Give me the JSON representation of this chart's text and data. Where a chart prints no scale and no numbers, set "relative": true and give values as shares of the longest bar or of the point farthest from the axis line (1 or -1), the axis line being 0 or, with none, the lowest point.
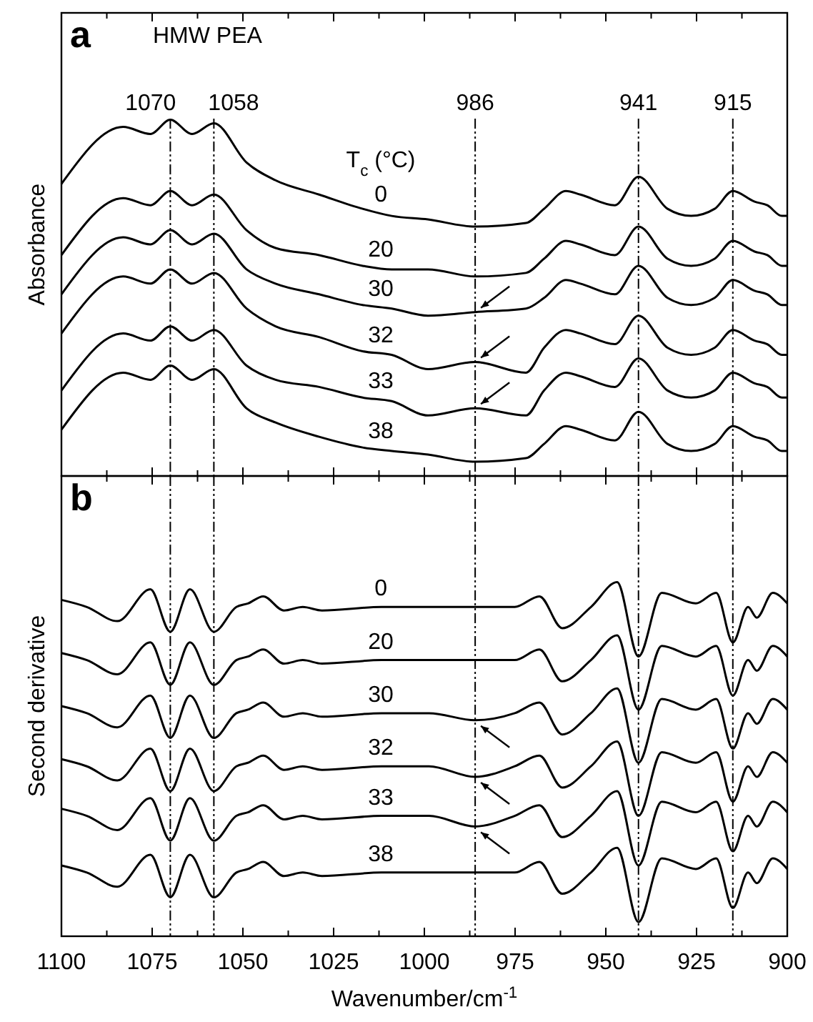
{
  "chart_data": [
    {
      "type": "line",
      "title": "a",
      "subtitle": "HMW PEA",
      "ylabel": "Absorbance",
      "legend_title": "T$_{c}$ (°C)",
      "relative": true,
      "tick_labels": false,
      "line_style": "solid",
      "xlim": [
        1100,
        900
      ],
      "xticks": [
        {
          "value": 1100,
          "label": null
        },
        {
          "value": 1087.5,
          "label": null
        },
        {
          "value": 1075,
          "label": null
        },
        {
          "value": 1062.5,
          "label": null
        },
        {
          "value": 1050,
          "label": null
        },
        {
          "value": 1037.5,
          "label": null
        },
        {
          "value": 1025,
          "label": null
        },
        {
          "value": 1012.5,
          "label": null
        },
        {
          "value": 1000,
          "label": null
        },
        {
          "value": 987.5,
          "label": null
        },
        {
          "value": 975,
          "label": null
        },
        {
          "value": 962.5,
          "label": null
        },
        {
          "value": 950,
          "label": null
        },
        {
          "value": 937.5,
          "label": null
        },
        {
          "value": 925,
          "label": null
        },
        {
          "value": 912.5,
          "label": null
        },
        {
          "value": 900,
          "label": null
        }
      ],
      "x": [
        1100,
        1083,
        1075.5,
        1070,
        1064,
        1058,
        1049,
        1041,
        1029,
        1017,
        1009,
        999,
        986,
        972,
        967,
        961,
        957,
        947.5,
        941,
        933,
        926.5,
        920,
        915,
        909,
        905.5,
        901.5,
        900
      ],
      "ref_lines": [
        {
          "axis": "x",
          "value": 1070,
          "label": "1070",
          "line_style": "dashed"
        },
        {
          "axis": "x",
          "value": 1058,
          "label": "1058",
          "line_style": "dashed"
        },
        {
          "axis": "x",
          "value": 986,
          "label": "986",
          "line_style": "dashed"
        },
        {
          "axis": "x",
          "value": 941,
          "label": "941",
          "line_style": "dashed"
        },
        {
          "axis": "x",
          "value": 915,
          "label": "915",
          "line_style": "dashed"
        }
      ],
      "series": [
        {
          "name": "0",
          "color": "#000000",
          "values": [
            0.82,
            0.98,
            0.96,
            1,
            0.96,
            0.99,
            0.88,
            0.83,
            0.79,
            0.75,
            0.73,
            0.72,
            0.7,
            0.71,
            0.75,
            0.8,
            0.79,
            0.76,
            0.84,
            0.75,
            0.73,
            0.75,
            0.8,
            0.77,
            0.76,
            0.73,
            0.73
          ]
        },
        {
          "name": "20",
          "color": "#000000",
          "values": [
            0.62,
            0.78,
            0.76,
            0.8,
            0.76,
            0.79,
            0.69,
            0.64,
            0.62,
            0.59,
            0.58,
            0.58,
            0.56,
            0.57,
            0.61,
            0.66,
            0.65,
            0.62,
            0.7,
            0.61,
            0.59,
            0.61,
            0.66,
            0.63,
            0.62,
            0.59,
            0.59
          ]
        },
        {
          "name": "30",
          "color": "#000000",
          "values": [
            0.51,
            0.67,
            0.65,
            0.69,
            0.65,
            0.68,
            0.58,
            0.54,
            0.51,
            0.48,
            0.47,
            0.45,
            0.46,
            0.47,
            0.5,
            0.55,
            0.54,
            0.51,
            0.59,
            0.5,
            0.48,
            0.5,
            0.55,
            0.52,
            0.51,
            0.48,
            0.48
          ]
        },
        {
          "name": "32",
          "color": "#000000",
          "values": [
            0.4,
            0.56,
            0.54,
            0.58,
            0.54,
            0.57,
            0.47,
            0.42,
            0.39,
            0.35,
            0.34,
            0.3,
            0.32,
            0.29,
            0.36,
            0.41,
            0.4,
            0.37,
            0.45,
            0.36,
            0.34,
            0.36,
            0.41,
            0.38,
            0.37,
            0.34,
            0.34
          ]
        },
        {
          "name": "33",
          "color": "#000000",
          "values": [
            0.24,
            0.4,
            0.38,
            0.42,
            0.38,
            0.41,
            0.31,
            0.27,
            0.25,
            0.22,
            0.21,
            0.17,
            0.19,
            0.17,
            0.24,
            0.29,
            0.28,
            0.25,
            0.33,
            0.24,
            0.22,
            0.24,
            0.29,
            0.26,
            0.25,
            0.22,
            0.22
          ]
        },
        {
          "name": "38",
          "color": "#000000",
          "values": [
            0.13,
            0.29,
            0.27,
            0.31,
            0.27,
            0.3,
            0.19,
            0.15,
            0.11,
            0.08,
            0.07,
            0.06,
            0.04,
            0.05,
            0.09,
            0.14,
            0.13,
            0.1,
            0.18,
            0.09,
            0.07,
            0.09,
            0.14,
            0.11,
            0.1,
            0.07,
            0.07
          ]
        }
      ]
    },
    {
      "type": "line",
      "title": "b",
      "ylabel": "Second derivative",
      "xlabel": "Wavenumber/cm$^{-1}$",
      "relative": true,
      "tick_labels": "x",
      "line_style": "solid",
      "xlim": [
        1100,
        900
      ],
      "xticks": [
        1100,
        {
          "value": 1087.5,
          "label": null
        },
        1075,
        {
          "value": 1062.5,
          "label": null
        },
        1050,
        {
          "value": 1037.5,
          "label": null
        },
        1025,
        {
          "value": 1012.5,
          "label": null
        },
        1000,
        {
          "value": 987.5,
          "label": null
        },
        975,
        {
          "value": 962.5,
          "label": null
        },
        950,
        {
          "value": 937.5,
          "label": null
        },
        925,
        {
          "value": 912.5,
          "label": null
        },
        900
      ],
      "x": [
        1100,
        1093,
        1084.6,
        1075.5,
        1070,
        1064.6,
        1058,
        1051.8,
        1048.6,
        1044.4,
        1038.7,
        1033.5,
        1028.2,
        1011.8,
        998.7,
        986,
        975.1,
        968.3,
        962,
        954.1,
        946.9,
        941,
        934.6,
        925.2,
        919.6,
        915,
        910.8,
        908.4,
        904,
        900
      ],
      "ref_lines": [
        {
          "axis": "x",
          "value": 1070,
          "line_style": "dashed"
        },
        {
          "axis": "x",
          "value": 1058,
          "line_style": "dashed"
        },
        {
          "axis": "x",
          "value": 986,
          "line_style": "dashed"
        },
        {
          "axis": "x",
          "value": 941,
          "line_style": "dashed"
        },
        {
          "axis": "x",
          "value": 915,
          "line_style": "dashed"
        }
      ],
      "series": [
        {
          "name": "0",
          "color": "#000000",
          "values": [
            0.95,
            0.93,
            0.89,
            0.98,
            0.86,
            0.98,
            0.86,
            0.93,
            0.94,
            0.96,
            0.92,
            0.93,
            0.92,
            0.93,
            0.93,
            0.93,
            0.93,
            0.96,
            0.87,
            0.93,
            1,
            0.79,
            0.97,
            0.94,
            0.97,
            0.83,
            0.93,
            0.9,
            0.97,
            0.94
          ]
        },
        {
          "name": "20",
          "color": "#000000",
          "values": [
            0.8,
            0.78,
            0.74,
            0.83,
            0.71,
            0.83,
            0.71,
            0.78,
            0.79,
            0.81,
            0.77,
            0.78,
            0.77,
            0.78,
            0.78,
            0.78,
            0.78,
            0.81,
            0.72,
            0.78,
            0.85,
            0.64,
            0.82,
            0.79,
            0.82,
            0.68,
            0.78,
            0.75,
            0.82,
            0.79
          ]
        },
        {
          "name": "30",
          "color": "#000000",
          "values": [
            0.65,
            0.63,
            0.59,
            0.68,
            0.56,
            0.68,
            0.56,
            0.63,
            0.64,
            0.66,
            0.62,
            0.63,
            0.62,
            0.63,
            0.63,
            0.61,
            0.63,
            0.66,
            0.57,
            0.63,
            0.7,
            0.49,
            0.67,
            0.64,
            0.67,
            0.53,
            0.63,
            0.6,
            0.67,
            0.64
          ]
        },
        {
          "name": "32",
          "color": "#000000",
          "values": [
            0.5,
            0.48,
            0.44,
            0.53,
            0.41,
            0.53,
            0.41,
            0.48,
            0.49,
            0.51,
            0.47,
            0.48,
            0.47,
            0.48,
            0.48,
            0.45,
            0.48,
            0.51,
            0.42,
            0.48,
            0.55,
            0.34,
            0.52,
            0.49,
            0.52,
            0.38,
            0.48,
            0.45,
            0.52,
            0.49
          ]
        },
        {
          "name": "33",
          "color": "#000000",
          "values": [
            0.36,
            0.34,
            0.3,
            0.39,
            0.27,
            0.39,
            0.27,
            0.34,
            0.35,
            0.37,
            0.33,
            0.34,
            0.33,
            0.34,
            0.34,
            0.31,
            0.34,
            0.37,
            0.28,
            0.34,
            0.41,
            0.2,
            0.38,
            0.35,
            0.38,
            0.24,
            0.34,
            0.31,
            0.38,
            0.35
          ]
        },
        {
          "name": "38",
          "color": "#000000",
          "values": [
            0.2,
            0.18,
            0.14,
            0.23,
            0.11,
            0.23,
            0.11,
            0.18,
            0.19,
            0.21,
            0.17,
            0.18,
            0.17,
            0.18,
            0.18,
            0.18,
            0.18,
            0.21,
            0.12,
            0.18,
            0.25,
            0.04,
            0.22,
            0.19,
            0.22,
            0.08,
            0.18,
            0.15,
            0.22,
            0.19
          ]
        }
      ]
    }
  ]
}
